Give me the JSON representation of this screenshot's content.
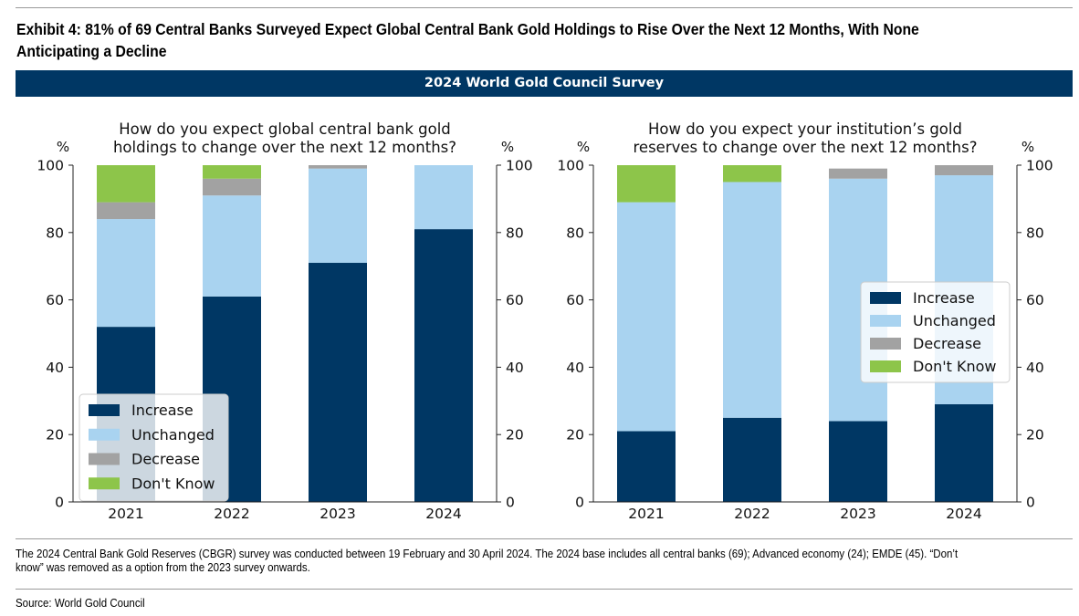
{
  "exhibit_title": "Exhibit 4: 81% of 69 Central Banks Surveyed Expect Global Central Bank Gold Holdings to Rise Over the Next 12 Months, With None Anticipating a Decline",
  "banner": "2024 World Gold Council Survey",
  "footnote": "The 2024 Central Bank Gold Reserves (CBGR) survey was conducted between 19 February and 30 April 2024. The 2024 base includes all central banks (69); Advanced economy (24); EMDE (45). “Don’t know” was removed as a option from the 2023 survey onwards.",
  "source": "Source: World Gold Council",
  "colors": {
    "Increase": "#003764",
    "Unchanged": "#a9d3f0",
    "Decrease": "#a2a2a2",
    "Don't Know": "#8dc54a"
  },
  "chart_data": [
    {
      "type": "bar",
      "stacked": true,
      "title": "How do you expect global central bank gold holdings to change over the next 12 months?",
      "title_lines": [
        "How do you expect global central bank gold",
        "holdings to change over the next 12 months?"
      ],
      "ylabel_left": "%",
      "ylabel_right": "%",
      "ylim": [
        0,
        100
      ],
      "yticks": [
        "0",
        "20",
        "40",
        "60",
        "80",
        "100"
      ],
      "categories": [
        "2021",
        "2022",
        "2023",
        "2024"
      ],
      "series": [
        {
          "name": "Increase",
          "values": [
            52,
            61,
            71,
            81
          ]
        },
        {
          "name": "Unchanged",
          "values": [
            32,
            30,
            28,
            19
          ]
        },
        {
          "name": "Decrease",
          "values": [
            5,
            5,
            1,
            0
          ]
        },
        {
          "name": "Don't Know",
          "values": [
            11,
            4,
            0,
            0
          ]
        }
      ],
      "legend": "lower-left"
    },
    {
      "type": "bar",
      "stacked": true,
      "title": "How do you expect your institution’s gold reserves to change over the next 12 months?",
      "title_lines": [
        "How do you expect your institution’s gold",
        "reserves to change over the next 12 months?"
      ],
      "ylabel_left": "%",
      "ylabel_right": "%",
      "ylim": [
        0,
        100
      ],
      "yticks": [
        "0",
        "20",
        "40",
        "60",
        "80",
        "100"
      ],
      "categories": [
        "2021",
        "2022",
        "2023",
        "2024"
      ],
      "series": [
        {
          "name": "Increase",
          "values": [
            21,
            25,
            24,
            29
          ]
        },
        {
          "name": "Unchanged",
          "values": [
            68,
            70,
            72,
            68
          ]
        },
        {
          "name": "Decrease",
          "values": [
            0,
            0,
            3,
            3
          ]
        },
        {
          "name": "Don't Know",
          "values": [
            11,
            5,
            0,
            0
          ]
        }
      ],
      "legend": "center-right"
    }
  ]
}
